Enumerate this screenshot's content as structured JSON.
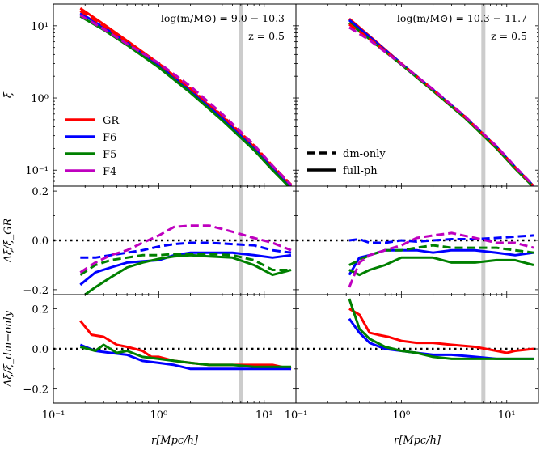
{
  "figure": {
    "description_free": true
  },
  "colors": {
    "GR": "#ff0000",
    "F6": "#0000ff",
    "F5": "#008000",
    "F4": "#bf00bf",
    "reference_band": "#cccccc"
  },
  "chart_data": [
    {
      "type": "line",
      "panel": "top-left",
      "annotation_lines": [
        "log(m/M⊙) = 9.0 − 10.3",
        "z = 0.5"
      ],
      "ylabel": "ξ",
      "xscale": "log",
      "yscale": "log",
      "xlim": [
        0.1,
        20
      ],
      "ylim": [
        0.06,
        20
      ],
      "yticks": [
        {
          "v": 0.1,
          "label": "10⁻¹"
        },
        {
          "v": 1,
          "label": "10⁰"
        },
        {
          "v": 10,
          "label": "10¹"
        }
      ],
      "reference_x": 6,
      "legend_models": {
        "position": "left",
        "entries": [
          {
            "name": "GR",
            "color": "#ff0000"
          },
          {
            "name": "F6",
            "color": "#0000ff"
          },
          {
            "name": "F5",
            "color": "#008000"
          },
          {
            "name": "F4",
            "color": "#bf00bf"
          }
        ]
      },
      "series": [
        {
          "name": "GR",
          "style": "solid",
          "color": "#ff0000",
          "x": [
            0.18,
            0.3,
            0.5,
            1,
            2,
            4,
            8,
            12,
            18
          ],
          "y": [
            17.5,
            10.5,
            6.2,
            3.0,
            1.3,
            0.55,
            0.21,
            0.11,
            0.06
          ]
        },
        {
          "name": "F6",
          "style": "solid",
          "color": "#0000ff",
          "x": [
            0.18,
            0.3,
            0.5,
            1,
            2,
            4,
            8,
            12,
            18
          ],
          "y": [
            15,
            9.5,
            5.8,
            2.8,
            1.25,
            0.52,
            0.2,
            0.105,
            0.058
          ]
        },
        {
          "name": "F5",
          "style": "solid",
          "color": "#008000",
          "x": [
            0.18,
            0.3,
            0.5,
            1,
            2,
            4,
            8,
            12,
            18
          ],
          "y": [
            13.5,
            8.8,
            5.4,
            2.65,
            1.18,
            0.49,
            0.19,
            0.1,
            0.055
          ]
        },
        {
          "name": "GR",
          "style": "dashed",
          "color": "#ff0000",
          "x": [
            0.18,
            0.3,
            0.5,
            1,
            2,
            4,
            8,
            12,
            18
          ],
          "y": [
            16,
            10,
            6.0,
            3.0,
            1.35,
            0.57,
            0.22,
            0.115,
            0.063
          ]
        },
        {
          "name": "F4",
          "style": "dashed",
          "color": "#bf00bf",
          "x": [
            0.18,
            0.3,
            0.5,
            1,
            2,
            4,
            8,
            12,
            18
          ],
          "y": [
            14,
            9.0,
            5.6,
            3.05,
            1.45,
            0.6,
            0.225,
            0.115,
            0.062
          ]
        }
      ]
    },
    {
      "type": "line",
      "panel": "top-right",
      "annotation_lines": [
        "log(m/M⊙) = 10.3 − 11.7",
        "z = 0.5"
      ],
      "xscale": "log",
      "yscale": "log",
      "xlim": [
        0.1,
        20
      ],
      "ylim": [
        0.06,
        20
      ],
      "reference_x": 6,
      "legend_styles": {
        "position": "left",
        "entries": [
          {
            "name": "dm-only",
            "style": "dashed"
          },
          {
            "name": "full-ph",
            "style": "solid"
          }
        ]
      },
      "series": [
        {
          "name": "GR",
          "style": "solid",
          "color": "#ff0000",
          "x": [
            0.32,
            0.5,
            1,
            2,
            4,
            8,
            12,
            18
          ],
          "y": [
            12.5,
            7.2,
            3.0,
            1.3,
            0.55,
            0.21,
            0.11,
            0.06
          ]
        },
        {
          "name": "F6",
          "style": "solid",
          "color": "#0000ff",
          "x": [
            0.32,
            0.5,
            1,
            2,
            4,
            8,
            12,
            18
          ],
          "y": [
            12,
            7.0,
            3.0,
            1.3,
            0.55,
            0.21,
            0.11,
            0.06
          ]
        },
        {
          "name": "F5",
          "style": "solid",
          "color": "#008000",
          "x": [
            0.32,
            0.5,
            1,
            2,
            4,
            8,
            12,
            18
          ],
          "y": [
            11,
            6.5,
            2.9,
            1.25,
            0.53,
            0.2,
            0.105,
            0.058
          ]
        },
        {
          "name": "GR",
          "style": "dashed",
          "color": "#ff0000",
          "x": [
            0.32,
            0.5,
            1,
            2,
            4,
            8,
            12,
            18
          ],
          "y": [
            10.5,
            6.6,
            3.0,
            1.3,
            0.55,
            0.21,
            0.11,
            0.06
          ]
        },
        {
          "name": "F4",
          "style": "dashed",
          "color": "#bf00bf",
          "x": [
            0.32,
            0.5,
            1,
            2,
            4,
            8,
            12,
            18
          ],
          "y": [
            9.5,
            6.3,
            2.95,
            1.32,
            0.56,
            0.215,
            0.112,
            0.061
          ]
        }
      ]
    },
    {
      "type": "line",
      "panel": "middle-left",
      "ylabel": "Δξ/ξ_GR",
      "xscale": "log",
      "xlim": [
        0.1,
        20
      ],
      "ylim": [
        -0.22,
        0.22
      ],
      "yticks": [
        {
          "v": -0.2,
          "label": "−0.2"
        },
        {
          "v": 0,
          "label": "0.0"
        },
        {
          "v": 0.2,
          "label": "0.2"
        }
      ],
      "reference_x": 6,
      "zero_line": 0,
      "series": [
        {
          "name": "F6",
          "style": "solid",
          "color": "#0000ff",
          "x": [
            0.18,
            0.25,
            0.35,
            0.5,
            0.7,
            1,
            1.4,
            2,
            3,
            5,
            8,
            12,
            18
          ],
          "y": [
            -0.18,
            -0.13,
            -0.11,
            -0.09,
            -0.085,
            -0.08,
            -0.06,
            -0.05,
            -0.05,
            -0.05,
            -0.06,
            -0.07,
            -0.06
          ]
        },
        {
          "name": "F5",
          "style": "solid",
          "color": "#008000",
          "x": [
            0.2,
            0.25,
            0.35,
            0.5,
            0.7,
            1,
            1.4,
            2,
            3,
            5,
            8,
            12,
            18
          ],
          "y": [
            -0.22,
            -0.19,
            -0.15,
            -0.11,
            -0.09,
            -0.075,
            -0.065,
            -0.06,
            -0.065,
            -0.07,
            -0.1,
            -0.14,
            -0.12
          ]
        },
        {
          "name": "F6",
          "style": "dashed",
          "color": "#0000ff",
          "x": [
            0.18,
            0.25,
            0.35,
            0.5,
            0.7,
            1,
            1.4,
            2,
            3,
            5,
            8,
            12,
            18
          ],
          "y": [
            -0.07,
            -0.07,
            -0.06,
            -0.05,
            -0.04,
            -0.025,
            -0.015,
            -0.01,
            -0.01,
            -0.015,
            -0.02,
            -0.04,
            -0.05
          ]
        },
        {
          "name": "F5",
          "style": "dashed",
          "color": "#008000",
          "x": [
            0.18,
            0.25,
            0.35,
            0.5,
            0.7,
            1,
            1.4,
            2,
            3,
            5,
            8,
            12,
            18
          ],
          "y": [
            -0.14,
            -0.1,
            -0.08,
            -0.07,
            -0.06,
            -0.06,
            -0.055,
            -0.055,
            -0.055,
            -0.06,
            -0.08,
            -0.12,
            -0.12
          ]
        },
        {
          "name": "F4",
          "style": "dashed",
          "color": "#bf00bf",
          "x": [
            0.18,
            0.25,
            0.35,
            0.5,
            0.7,
            1,
            1.4,
            2,
            3,
            5,
            8,
            12,
            18
          ],
          "y": [
            -0.13,
            -0.09,
            -0.06,
            -0.04,
            -0.01,
            0.02,
            0.055,
            0.06,
            0.06,
            0.035,
            0.01,
            -0.01,
            -0.04
          ]
        }
      ]
    },
    {
      "type": "line",
      "panel": "middle-right",
      "xscale": "log",
      "xlim": [
        0.1,
        20
      ],
      "ylim": [
        -0.22,
        0.22
      ],
      "reference_x": 6,
      "zero_line": 0,
      "series": [
        {
          "name": "F6",
          "style": "solid",
          "color": "#0000ff",
          "x": [
            0.32,
            0.4,
            0.5,
            0.7,
            1,
            1.4,
            2,
            3,
            5,
            8,
            12,
            18
          ],
          "y": [
            -0.14,
            -0.07,
            -0.06,
            -0.04,
            -0.04,
            -0.04,
            -0.05,
            -0.04,
            -0.04,
            -0.05,
            -0.06,
            -0.05
          ]
        },
        {
          "name": "F5",
          "style": "solid",
          "color": "#008000",
          "x": [
            0.32,
            0.4,
            0.5,
            0.7,
            1,
            1.4,
            2,
            3,
            5,
            8,
            12,
            18
          ],
          "y": [
            -0.12,
            -0.14,
            -0.12,
            -0.1,
            -0.07,
            -0.07,
            -0.07,
            -0.09,
            -0.09,
            -0.08,
            -0.08,
            -0.1
          ]
        },
        {
          "name": "F6",
          "style": "dashed",
          "color": "#0000ff",
          "x": [
            0.32,
            0.4,
            0.5,
            0.7,
            1,
            1.4,
            2,
            3,
            5,
            8,
            12,
            18
          ],
          "y": [
            0,
            0.005,
            -0.01,
            -0.01,
            0,
            -0.005,
            0,
            0.005,
            0.005,
            0.01,
            0.015,
            0.02
          ]
        },
        {
          "name": "F5",
          "style": "dashed",
          "color": "#008000",
          "x": [
            0.32,
            0.4,
            0.5,
            0.7,
            1,
            1.4,
            2,
            3,
            5,
            8,
            12,
            18
          ],
          "y": [
            -0.1,
            -0.08,
            -0.06,
            -0.04,
            -0.04,
            -0.03,
            -0.02,
            -0.03,
            -0.03,
            -0.03,
            -0.04,
            -0.05
          ]
        },
        {
          "name": "F4",
          "style": "dashed",
          "color": "#bf00bf",
          "x": [
            0.32,
            0.4,
            0.5,
            0.7,
            1,
            1.4,
            2,
            3,
            5,
            8,
            12,
            18
          ],
          "y": [
            -0.19,
            -0.09,
            -0.06,
            -0.04,
            -0.02,
            0.01,
            0.02,
            0.03,
            0.01,
            -0.01,
            -0.01,
            -0.03
          ]
        }
      ]
    },
    {
      "type": "line",
      "panel": "bottom-left",
      "ylabel": "Δξ/ξ_dm−only",
      "xlabel": "r[Mpc/h]",
      "xscale": "log",
      "xlim": [
        0.1,
        20
      ],
      "ylim": [
        -0.27,
        0.27
      ],
      "xticks": [
        {
          "v": 0.1,
          "label": "10⁻¹"
        },
        {
          "v": 1,
          "label": "10⁰"
        },
        {
          "v": 10,
          "label": "10¹"
        }
      ],
      "yticks": [
        {
          "v": -0.2,
          "label": "−0.2"
        },
        {
          "v": 0,
          "label": "0.0"
        },
        {
          "v": 0.2,
          "label": "0.2"
        }
      ],
      "reference_x": 6,
      "zero_line": 0,
      "series": [
        {
          "name": "GR",
          "style": "solid",
          "color": "#ff0000",
          "x": [
            0.18,
            0.23,
            0.3,
            0.4,
            0.5,
            0.7,
            0.85,
            1,
            1.4,
            2,
            3,
            5,
            8,
            12,
            18
          ],
          "y": [
            0.14,
            0.07,
            0.06,
            0.02,
            0.01,
            -0.01,
            -0.04,
            -0.04,
            -0.06,
            -0.07,
            -0.08,
            -0.08,
            -0.08,
            -0.08,
            -0.1
          ]
        },
        {
          "name": "F6",
          "style": "solid",
          "color": "#0000ff",
          "x": [
            0.18,
            0.25,
            0.35,
            0.5,
            0.7,
            1,
            1.4,
            2,
            3,
            5,
            8,
            12,
            18
          ],
          "y": [
            0.02,
            -0.01,
            -0.02,
            -0.03,
            -0.06,
            -0.07,
            -0.08,
            -0.1,
            -0.1,
            -0.1,
            -0.1,
            -0.1,
            -0.1
          ]
        },
        {
          "name": "F5",
          "style": "solid",
          "color": "#008000",
          "x": [
            0.18,
            0.25,
            0.3,
            0.4,
            0.5,
            0.7,
            1,
            1.4,
            2,
            3,
            5,
            8,
            12,
            18
          ],
          "y": [
            0.01,
            -0.01,
            0.02,
            -0.02,
            -0.01,
            -0.04,
            -0.05,
            -0.06,
            -0.07,
            -0.08,
            -0.08,
            -0.09,
            -0.09,
            -0.09
          ]
        }
      ]
    },
    {
      "type": "line",
      "panel": "bottom-right",
      "xlabel": "r[Mpc/h]",
      "xscale": "log",
      "xlim": [
        0.1,
        20
      ],
      "ylim": [
        -0.27,
        0.27
      ],
      "xticks": [
        {
          "v": 0.1,
          "label": "10⁻¹"
        },
        {
          "v": 1,
          "label": "10⁰"
        },
        {
          "v": 10,
          "label": "10¹"
        }
      ],
      "reference_x": 6,
      "zero_line": 0,
      "series": [
        {
          "name": "GR",
          "style": "solid",
          "color": "#ff0000",
          "x": [
            0.32,
            0.4,
            0.5,
            0.6,
            0.75,
            1,
            1.4,
            2,
            3,
            5,
            8,
            10,
            12,
            18
          ],
          "y": [
            0.2,
            0.17,
            0.08,
            0.07,
            0.06,
            0.04,
            0.03,
            0.03,
            0.02,
            0.01,
            -0.01,
            -0.02,
            -0.01,
            0.0
          ]
        },
        {
          "name": "F6",
          "style": "solid",
          "color": "#0000ff",
          "x": [
            0.32,
            0.4,
            0.5,
            0.7,
            1,
            1.4,
            2,
            3,
            5,
            8,
            12,
            18
          ],
          "y": [
            0.15,
            0.08,
            0.03,
            0.0,
            -0.01,
            -0.02,
            -0.03,
            -0.03,
            -0.04,
            -0.05,
            -0.05,
            -0.05
          ]
        },
        {
          "name": "F5",
          "style": "solid",
          "color": "#008000",
          "x": [
            0.32,
            0.4,
            0.5,
            0.7,
            1,
            1.4,
            2,
            3,
            5,
            8,
            12,
            18
          ],
          "y": [
            0.25,
            0.1,
            0.05,
            0.01,
            -0.01,
            -0.02,
            -0.04,
            -0.05,
            -0.05,
            -0.05,
            -0.05,
            -0.05
          ]
        }
      ]
    }
  ]
}
